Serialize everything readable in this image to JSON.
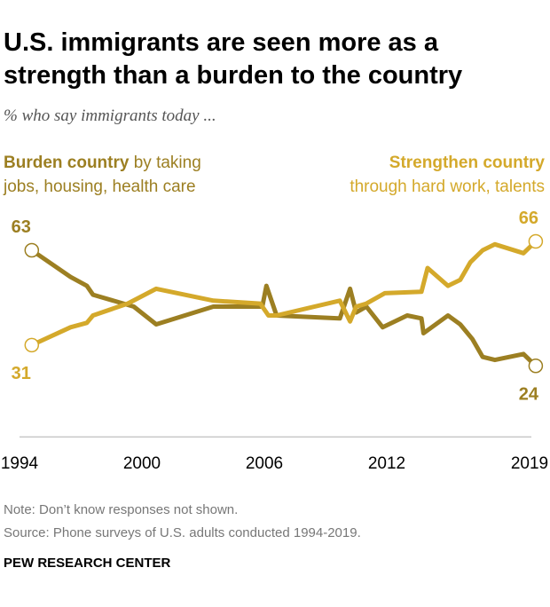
{
  "chart_data": {
    "type": "line",
    "title": "U.S. immigrants are seen more as a strength than a burden to the country",
    "subtitle": "% who say immigrants today ...",
    "xlabel": "",
    "ylabel": "",
    "xlim": [
      1994,
      2019
    ],
    "ylim": [
      0,
      70
    ],
    "grid": false,
    "x_ticks": [
      "1994",
      "2000",
      "2006",
      "2012",
      "2019"
    ],
    "x_tick_values": [
      1994,
      2000,
      2006,
      2012,
      2019
    ],
    "series": [
      {
        "name": "Burden country by taking jobs, housing, health care",
        "legend_bold": "Burden country",
        "legend_rest_1": " by taking",
        "legend_rest_2": "jobs, housing, health care",
        "color": "#9c7f22",
        "x": [
          1994.6,
          1996.5,
          1997.3,
          1997.6,
          1999.6,
          2000.7,
          2003.5,
          2005.9,
          2006.1,
          2006.6,
          2009.7,
          2010.2,
          2010.5,
          2011.0,
          2011.8,
          2013.0,
          2013.7,
          2013.8,
          2015.0,
          2015.6,
          2016.2,
          2016.7,
          2017.3,
          2018.7,
          2019.3
        ],
        "values": [
          63,
          54,
          51,
          48,
          44,
          38,
          44,
          44,
          51,
          41,
          40,
          50,
          42,
          44,
          37,
          41,
          40,
          35,
          41,
          38,
          33,
          27,
          26,
          28,
          24
        ],
        "start_label": "63",
        "end_label": "24"
      },
      {
        "name": "Strengthen country through hard work, talents",
        "legend_bold": "Strengthen country",
        "legend_rest_2": "through hard work, talents",
        "color": "#d4a92b",
        "x": [
          1994.6,
          1996.5,
          1997.3,
          1997.6,
          1999.3,
          2000.7,
          2003.5,
          2005.8,
          2006.2,
          2006.6,
          2009.7,
          2010.2,
          2010.5,
          2011.0,
          2011.9,
          2013.7,
          2014.0,
          2015.0,
          2015.6,
          2016.1,
          2016.7,
          2017.3,
          2018.7,
          2019.3
        ],
        "values": [
          31,
          37,
          38.5,
          41,
          45,
          50,
          46,
          45,
          41,
          41,
          46,
          39,
          44,
          45,
          48.5,
          49,
          57,
          51,
          53,
          59,
          63,
          65,
          62,
          66
        ],
        "start_label": "31",
        "end_label": "66"
      }
    ]
  },
  "notes": {
    "note": "Note: Don’t know responses not shown.",
    "source": "Source: Phone surveys of U.S. adults conducted 1994-2019.",
    "brand": "PEW RESEARCH CENTER"
  }
}
